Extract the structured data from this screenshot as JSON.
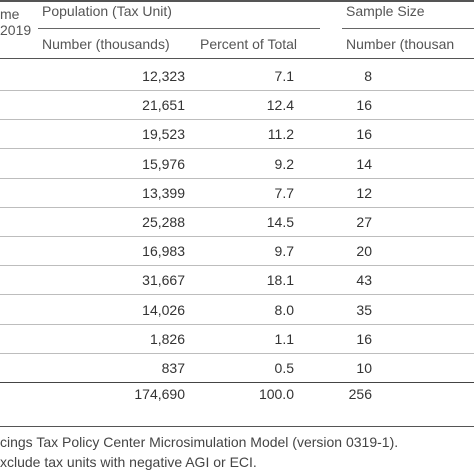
{
  "header": {
    "income_frag1": "me",
    "income_frag2": "2019",
    "population": "Population (Tax Unit)",
    "sample": "Sample Size",
    "col_number": "Number (thousands)",
    "col_percent": "Percent of Total",
    "col_sample_number": "Number (thousan"
  },
  "rows": [
    {
      "number": "12,323",
      "percent": "7.1",
      "sample": "8"
    },
    {
      "number": "21,651",
      "percent": "12.4",
      "sample": "16"
    },
    {
      "number": "19,523",
      "percent": "11.2",
      "sample": "16"
    },
    {
      "number": "15,976",
      "percent": "9.2",
      "sample": "14"
    },
    {
      "number": "13,399",
      "percent": "7.7",
      "sample": "12"
    },
    {
      "number": "25,288",
      "percent": "14.5",
      "sample": "27"
    },
    {
      "number": "16,983",
      "percent": "9.7",
      "sample": "20"
    },
    {
      "number": "31,667",
      "percent": "18.1",
      "sample": "43"
    },
    {
      "number": "14,026",
      "percent": "8.0",
      "sample": "35"
    },
    {
      "number": "1,826",
      "percent": "1.1",
      "sample": "16"
    },
    {
      "number": "837",
      "percent": "0.5",
      "sample": "10"
    },
    {
      "number": "174,690",
      "percent": "100.0",
      "sample": "256"
    }
  ],
  "footnotes": [
    "cings Tax Policy Center Microsimulation Model (version 0319-1).",
    "xclude tax units with negative AGI or ECI."
  ]
}
